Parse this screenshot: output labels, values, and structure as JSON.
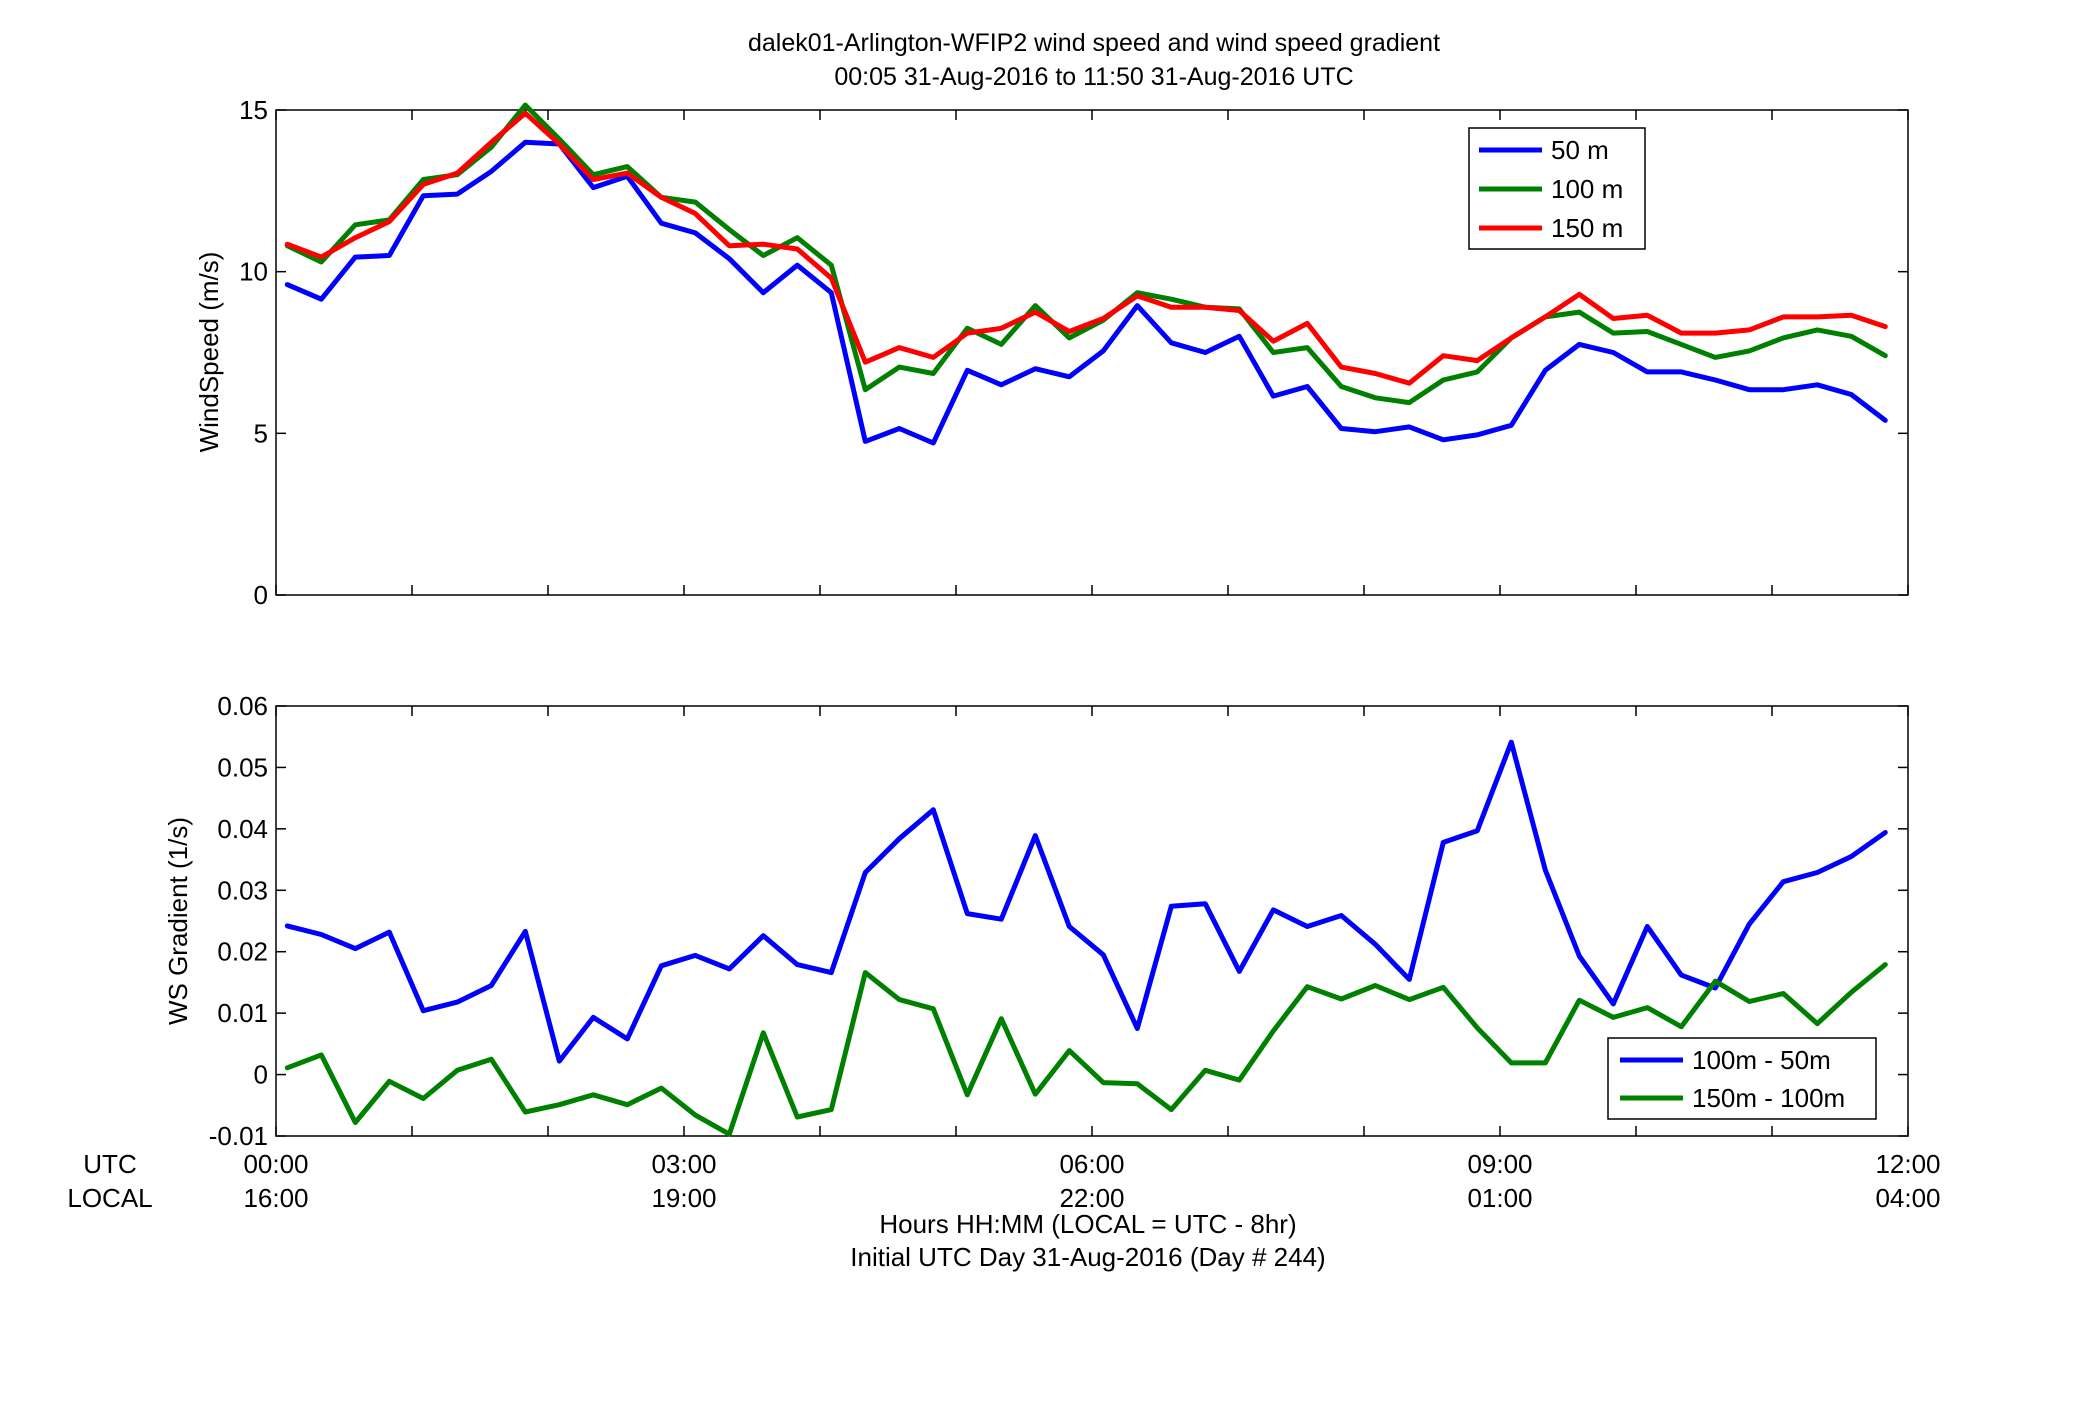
{
  "title_line1": "dalek01-Arlington-WFIP2  wind speed and wind speed gradient",
  "title_line2": "00:05 31-Aug-2016 to 11:50 31-Aug-2016  UTC",
  "xaxis": {
    "row1_label": "UTC",
    "row2_label": "LOCAL",
    "label_line1": "Hours HH:MM  (LOCAL = UTC - 8hr)",
    "label_line2": "Initial UTC Day 31-Aug-2016 (Day # 244)",
    "utc_ticks": [
      "00:00",
      "03:00",
      "06:00",
      "09:00",
      "12:00"
    ],
    "local_ticks": [
      "16:00",
      "19:00",
      "22:00",
      "01:00",
      "04:00"
    ]
  },
  "chart_data": [
    {
      "type": "line",
      "ylabel": "WindSpeed (m/s)",
      "xlim_hours": [
        0,
        12
      ],
      "ylim": [
        0,
        15
      ],
      "yticks": [
        0,
        5,
        10,
        15
      ],
      "legend_position": "top-right",
      "x_hours": [
        0.083,
        0.333,
        0.583,
        0.833,
        1.083,
        1.333,
        1.583,
        1.833,
        2.083,
        2.333,
        2.583,
        2.833,
        3.083,
        3.333,
        3.583,
        3.833,
        4.083,
        4.333,
        4.583,
        4.833,
        5.083,
        5.333,
        5.583,
        5.833,
        6.083,
        6.333,
        6.583,
        6.833,
        7.083,
        7.333,
        7.583,
        7.833,
        8.083,
        8.333,
        8.583,
        8.833,
        9.083,
        9.333,
        9.583,
        9.833,
        10.083,
        10.333,
        10.583,
        10.833,
        11.083,
        11.333,
        11.583,
        11.833
      ],
      "series": [
        {
          "name": "50 m",
          "color": "#0000ff",
          "values": [
            9.6,
            9.15,
            10.45,
            10.5,
            12.35,
            12.4,
            13.1,
            14.0,
            13.95,
            12.6,
            12.95,
            11.5,
            11.2,
            10.4,
            9.35,
            10.2,
            9.35,
            4.75,
            5.15,
            4.7,
            6.95,
            6.5,
            7.0,
            6.75,
            7.55,
            8.95,
            7.8,
            7.5,
            8.0,
            6.15,
            6.45,
            5.15,
            5.05,
            5.2,
            4.8,
            4.95,
            5.25,
            6.95,
            7.75,
            7.5,
            6.9,
            6.9,
            6.65,
            6.35,
            6.35,
            6.5,
            6.2,
            5.4
          ]
        },
        {
          "name": "100 m",
          "color": "#008000",
          "values": [
            10.8,
            10.3,
            11.45,
            11.6,
            12.85,
            13.0,
            13.85,
            15.15,
            14.1,
            13.0,
            13.25,
            12.3,
            12.15,
            11.3,
            10.5,
            11.05,
            10.2,
            6.35,
            7.05,
            6.85,
            8.25,
            7.75,
            8.95,
            7.95,
            8.5,
            9.35,
            9.15,
            8.9,
            8.85,
            7.5,
            7.65,
            6.45,
            6.1,
            5.95,
            6.65,
            6.9,
            7.95,
            8.6,
            8.75,
            8.1,
            8.15,
            7.75,
            7.35,
            7.55,
            7.95,
            8.2,
            8.0,
            7.4
          ]
        },
        {
          "name": "150 m",
          "color": "#ff0000",
          "values": [
            10.85,
            10.45,
            11.05,
            11.55,
            12.7,
            13.05,
            14.0,
            14.9,
            13.95,
            12.85,
            13.05,
            12.3,
            11.8,
            10.8,
            10.85,
            10.7,
            9.8,
            7.2,
            7.65,
            7.35,
            8.1,
            8.25,
            8.75,
            8.15,
            8.55,
            9.25,
            8.9,
            8.9,
            8.8,
            7.85,
            8.4,
            7.05,
            6.85,
            6.55,
            7.4,
            7.25,
            7.95,
            8.6,
            9.3,
            8.55,
            8.65,
            8.1,
            8.1,
            8.2,
            8.6,
            8.6,
            8.65,
            8.3
          ]
        }
      ]
    },
    {
      "type": "line",
      "ylabel": "WS Gradient (1/s)",
      "xlim_hours": [
        0,
        12
      ],
      "ylim": [
        -0.01,
        0.06
      ],
      "yticks": [
        -0.01,
        0,
        0.01,
        0.02,
        0.03,
        0.04,
        0.05,
        0.06
      ],
      "legend_position": "bottom-right",
      "x_hours": [
        0.083,
        0.333,
        0.583,
        0.833,
        1.083,
        1.333,
        1.583,
        1.833,
        2.083,
        2.333,
        2.583,
        2.833,
        3.083,
        3.333,
        3.583,
        3.833,
        4.083,
        4.333,
        4.583,
        4.833,
        5.083,
        5.333,
        5.583,
        5.833,
        6.083,
        6.333,
        6.583,
        6.833,
        7.083,
        7.333,
        7.583,
        7.833,
        8.083,
        8.333,
        8.583,
        8.833,
        9.083,
        9.333,
        9.583,
        9.833,
        10.083,
        10.333,
        10.583,
        10.833,
        11.083,
        11.333,
        11.583,
        11.833
      ],
      "series": [
        {
          "name": "100m - 50m",
          "color": "#0000ff",
          "values": [
            0.0242,
            0.0228,
            0.0205,
            0.0232,
            0.0104,
            0.0118,
            0.0145,
            0.0233,
            0.0022,
            0.0093,
            0.0058,
            0.0177,
            0.0194,
            0.0172,
            0.0226,
            0.0179,
            0.0166,
            0.0329,
            0.0384,
            0.0431,
            0.0262,
            0.0253,
            0.0389,
            0.0241,
            0.0195,
            0.0075,
            0.0274,
            0.0278,
            0.0168,
            0.0268,
            0.0241,
            0.0259,
            0.0212,
            0.0155,
            0.0378,
            0.0397,
            0.0541,
            0.0333,
            0.0193,
            0.0115,
            0.0241,
            0.0162,
            0.0141,
            0.0245,
            0.0314,
            0.0329,
            0.0355,
            0.0394
          ]
        },
        {
          "name": "150m - 100m",
          "color": "#008000",
          "values": [
            0.0011,
            0.0032,
            -0.0078,
            -0.0011,
            -0.0039,
            0.0007,
            0.0025,
            -0.0061,
            -0.0049,
            -0.0033,
            -0.0049,
            -0.0022,
            -0.0066,
            -0.0097,
            0.0068,
            -0.0069,
            -0.0057,
            0.0166,
            0.0122,
            0.0107,
            -0.0033,
            0.0091,
            -0.0032,
            0.0039,
            -0.0013,
            -0.0015,
            -0.0057,
            0.0007,
            -0.0009,
            0.0071,
            0.0143,
            0.0123,
            0.0145,
            0.0122,
            0.0142,
            0.0076,
            0.0019,
            0.0019,
            0.0121,
            0.0093,
            0.0109,
            0.0078,
            0.0152,
            0.0119,
            0.0132,
            0.0083,
            0.0134,
            0.0179
          ]
        }
      ]
    }
  ]
}
